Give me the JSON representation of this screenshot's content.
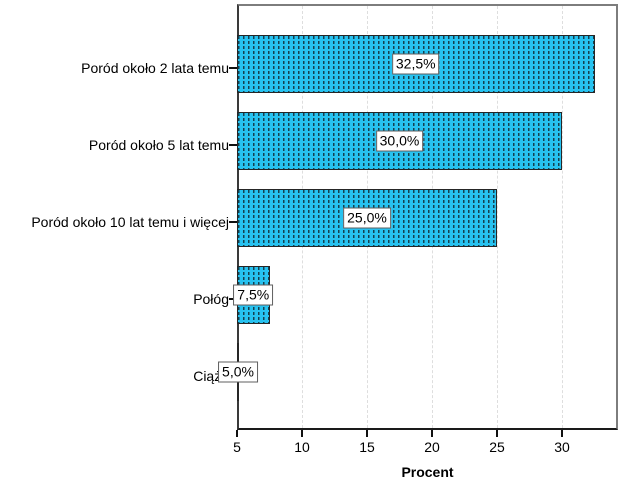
{
  "chart_data": {
    "type": "bar",
    "orientation": "horizontal",
    "title": "",
    "categories": [
      "Poród około 2 lata temu",
      "Poród około 5 lat temu",
      "Poród około 10 lat temu i więcej",
      "Połóg",
      "Ciąża"
    ],
    "values": [
      32.5,
      30.0,
      25.0,
      7.5,
      5.0
    ],
    "value_labels": [
      "32,5%",
      "30,0%",
      "25,0%",
      "7,5%",
      "5,0%"
    ],
    "xlabel": "Procent",
    "xticks": [
      5,
      10,
      15,
      20,
      25,
      30
    ],
    "xtick_labels": [
      "5",
      "10",
      "15",
      "20",
      "25",
      "30"
    ],
    "xlim": [
      5,
      34.3
    ],
    "grid": "vertical-dashed-at-ticks",
    "legend": "none",
    "bar_fill_color": "#27c2f0",
    "bar_pattern": "vertical dashed dot columns",
    "bar_pattern_color": "#14404f",
    "bar_border_color": "#262626",
    "value_box_fill": "#ffffff",
    "value_box_border": "#5f5f5f",
    "gridline_color": "#dedede",
    "axis_color": "#1a1a1a",
    "frame_color": "#7d7d7d"
  }
}
